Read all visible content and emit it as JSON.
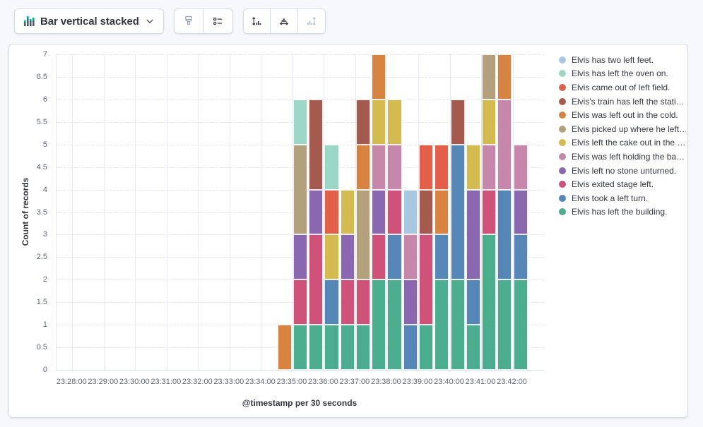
{
  "toolbar": {
    "chart_type_switcher": {
      "label": "Bar vertical stacked"
    },
    "style_buttons": [
      {
        "name": "visual-options",
        "icon": "brush-icon",
        "disabled": true
      },
      {
        "name": "legend-settings",
        "icon": "list-icon",
        "disabled": false
      }
    ],
    "axis_buttons": [
      {
        "name": "left-axis-settings",
        "icon": "axis-left-icon",
        "disabled": false
      },
      {
        "name": "bottom-axis-settings",
        "icon": "axis-bottom-icon",
        "disabled": false
      },
      {
        "name": "right-axis-settings",
        "icon": "axis-right-icon",
        "disabled": true
      }
    ]
  },
  "chart_data": {
    "type": "bar",
    "stacked": true,
    "title": "",
    "xlabel": "@timestamp per 30 seconds",
    "ylabel": "Count of records",
    "ylim": [
      0,
      7
    ],
    "y_tick_step": 0.5,
    "y_tick_labels": [
      "0",
      "0.5",
      "1",
      "1.5",
      "2",
      "2.5",
      "3",
      "3.5",
      "4",
      "4.5",
      "5",
      "5.5",
      "6",
      "6.5",
      "7"
    ],
    "x_window": [
      "23:27:30",
      "23:43:00"
    ],
    "x_tick_labels": [
      "23:28:00",
      "23:29:00",
      "23:30:00",
      "23:31:00",
      "23:32:00",
      "23:33:00",
      "23:34:00",
      "23:35:00",
      "23:36:00",
      "23:37:00",
      "23:38:00",
      "23:39:00",
      "23:40:00",
      "23:41:00",
      "23:42:00"
    ],
    "bucket_seconds": 30,
    "categories": [
      "23:34:30",
      "23:35:00",
      "23:35:30",
      "23:36:00",
      "23:36:30",
      "23:37:00",
      "23:37:30",
      "23:38:00",
      "23:38:30",
      "23:39:00",
      "23:39:30",
      "23:40:00",
      "23:40:30",
      "23:41:00",
      "23:41:30",
      "23:42:00"
    ],
    "legend_position": "right",
    "grid": {
      "vertical": "solid",
      "horizontal": "dashed"
    },
    "series": [
      {
        "name": "Elvis has two left feet.",
        "color": "#A8C8E2",
        "values": [
          0,
          0,
          0,
          0,
          0,
          0,
          0,
          0,
          1,
          0,
          0,
          0,
          0,
          0,
          0,
          0
        ]
      },
      {
        "name": "Elvis has left the oven on.",
        "color": "#9CD6C5",
        "values": [
          0,
          1,
          0,
          1,
          0,
          0,
          0,
          0,
          0,
          0,
          0,
          0,
          0,
          0,
          0,
          0
        ]
      },
      {
        "name": "Elvis came out of left field.",
        "color": "#E2604A",
        "values": [
          0,
          0,
          0,
          1,
          0,
          0,
          0,
          0,
          0,
          1,
          1,
          0,
          0,
          0,
          0,
          0
        ]
      },
      {
        "name": "Elvis's train has left the stati…",
        "color": "#A45B4D",
        "values": [
          0,
          0,
          2,
          0,
          0,
          1,
          0,
          0,
          0,
          1,
          0,
          1,
          0,
          0,
          0,
          0
        ]
      },
      {
        "name": "Elvis was left out in the cold.",
        "color": "#D78342",
        "values": [
          1,
          0,
          0,
          0,
          0,
          1,
          1,
          0,
          0,
          0,
          1,
          0,
          0,
          0,
          1,
          0
        ]
      },
      {
        "name": "Elvis picked up where he left…",
        "color": "#B2A17C",
        "values": [
          0,
          2,
          0,
          0,
          0,
          2,
          0,
          0,
          0,
          0,
          0,
          0,
          0,
          1,
          0,
          0
        ]
      },
      {
        "name": "Elvis left the cake out in the …",
        "color": "#D3BB51",
        "values": [
          0,
          0,
          0,
          1,
          1,
          0,
          1,
          1,
          0,
          0,
          0,
          0,
          1,
          1,
          0,
          0
        ]
      },
      {
        "name": "Elvis was left holding the ba…",
        "color": "#C687AB",
        "values": [
          0,
          0,
          0,
          0,
          0,
          0,
          1,
          1,
          1,
          0,
          0,
          0,
          0,
          1,
          2,
          1
        ]
      },
      {
        "name": "Elvis left no stone unturned.",
        "color": "#8A68B0",
        "values": [
          0,
          1,
          1,
          0,
          1,
          0,
          1,
          0,
          1,
          0,
          0,
          0,
          2,
          0,
          0,
          1
        ]
      },
      {
        "name": "Elvis exited stage left.",
        "color": "#CE527A",
        "values": [
          0,
          1,
          2,
          0,
          1,
          1,
          1,
          1,
          0,
          2,
          0,
          0,
          0,
          1,
          0,
          0
        ]
      },
      {
        "name": "Elvis took a left turn.",
        "color": "#5586B6",
        "values": [
          0,
          0,
          0,
          1,
          0,
          0,
          0,
          1,
          1,
          0,
          1,
          3,
          1,
          0,
          2,
          1
        ]
      },
      {
        "name": "Elvis has left the building.",
        "color": "#4BAC8E",
        "values": [
          0,
          1,
          1,
          1,
          1,
          1,
          2,
          2,
          0,
          1,
          2,
          2,
          1,
          3,
          2,
          2
        ]
      }
    ],
    "stack_order": "reverse-legend"
  }
}
